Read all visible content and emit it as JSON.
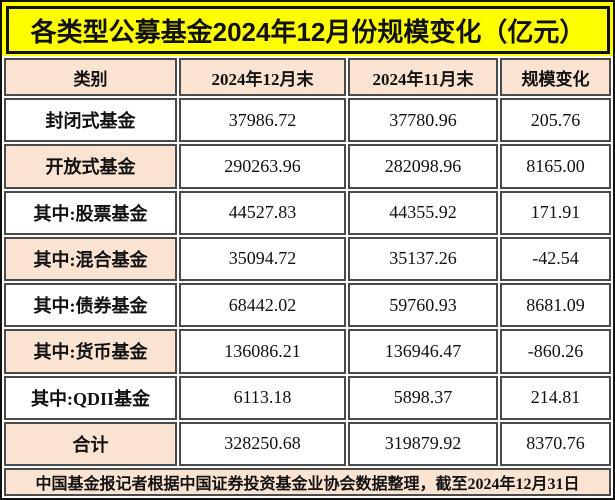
{
  "header": {
    "title": "各类型公募基金2024年12月份规模变化（亿元）"
  },
  "table": {
    "columns": [
      "类别",
      "2024年12月末",
      "2024年11月末",
      "规模变化"
    ],
    "rows": [
      {
        "category": "封闭式基金",
        "dec_2024": "37986.72",
        "nov_2024": "37780.96",
        "change": "205.76",
        "highlight": false
      },
      {
        "category": "开放式基金",
        "dec_2024": "290263.96",
        "nov_2024": "282098.96",
        "change": "8165.00",
        "highlight": true
      },
      {
        "category": "其中:股票基金",
        "dec_2024": "44527.83",
        "nov_2024": "44355.92",
        "change": "171.91",
        "highlight": false
      },
      {
        "category": "其中:混合基金",
        "dec_2024": "35094.72",
        "nov_2024": "35137.26",
        "change": "-42.54",
        "highlight": true
      },
      {
        "category": "其中:债券基金",
        "dec_2024": "68442.02",
        "nov_2024": "59760.93",
        "change": "8681.09",
        "highlight": false
      },
      {
        "category": "其中:货币基金",
        "dec_2024": "136086.21",
        "nov_2024": "136946.47",
        "change": "-860.26",
        "highlight": true
      },
      {
        "category": "其中:QDII基金",
        "dec_2024": "6113.18",
        "nov_2024": "5898.37",
        "change": "214.81",
        "highlight": false
      },
      {
        "category": "合计",
        "dec_2024": "328250.68",
        "nov_2024": "319879.92",
        "change": "8370.76",
        "highlight": true
      }
    ]
  },
  "footer": {
    "text": "中国基金报记者根据中国证券投资基金业协会数据整理，截至2024年12月31日"
  },
  "colors": {
    "title_bg": "#ffff00",
    "highlight_bg": "#fbe3d2",
    "cell_border": "#4a4a4a",
    "frame_border": "#111111",
    "text": "#111111"
  },
  "chart_data": {
    "type": "table",
    "title": "各类型公募基金2024年12月份规模变化（亿元）",
    "unit": "亿元",
    "columns": [
      "类别",
      "2024年12月末",
      "2024年11月末",
      "规模变化"
    ],
    "rows": [
      [
        "封闭式基金",
        37986.72,
        37780.96,
        205.76
      ],
      [
        "开放式基金",
        290263.96,
        282098.96,
        8165.0
      ],
      [
        "其中:股票基金",
        44527.83,
        44355.92,
        171.91
      ],
      [
        "其中:混合基金",
        35094.72,
        35137.26,
        -42.54
      ],
      [
        "其中:债券基金",
        68442.02,
        59760.93,
        8681.09
      ],
      [
        "其中:货币基金",
        136086.21,
        136946.47,
        -860.26
      ],
      [
        "其中:QDII基金",
        6113.18,
        5898.37,
        214.81
      ],
      [
        "合计",
        328250.68,
        319879.92,
        8370.76
      ]
    ],
    "source_note": "中国基金报记者根据中国证券投资基金业协会数据整理，截至2024年12月31日"
  }
}
